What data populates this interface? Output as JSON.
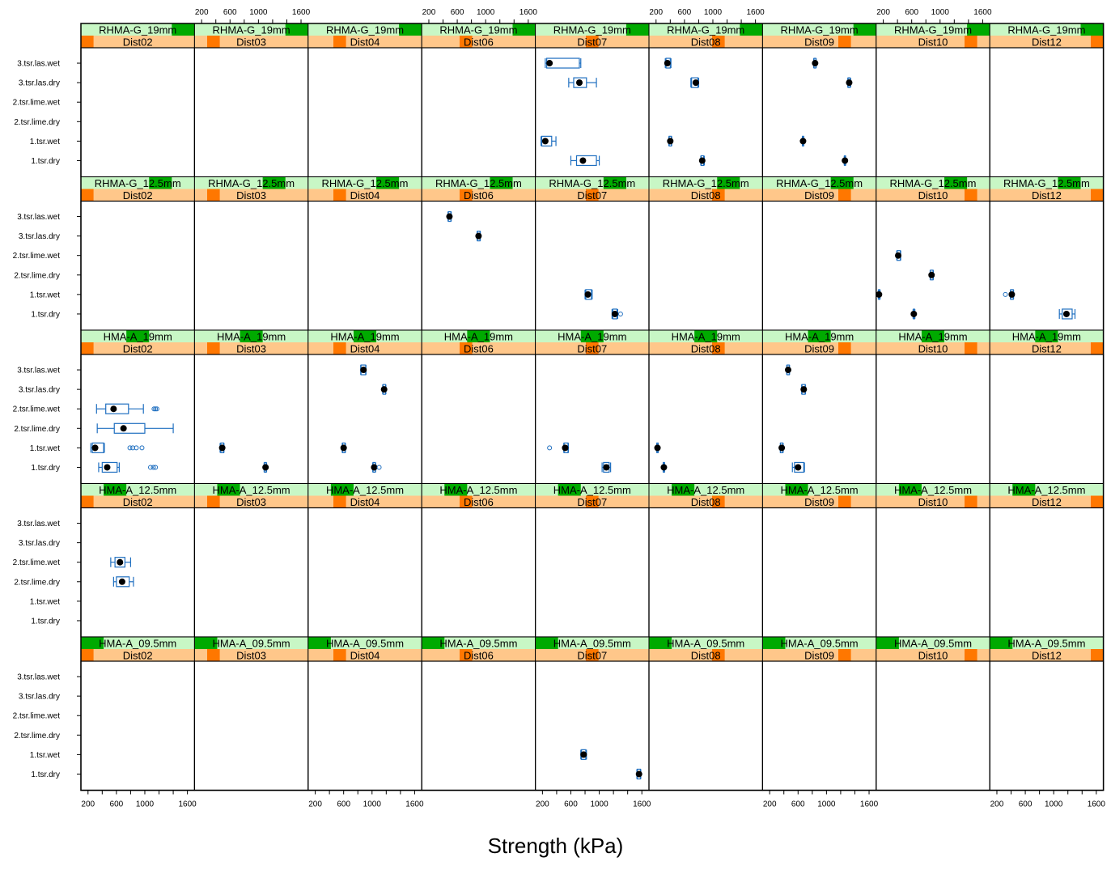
{
  "chart_data": {
    "type": "box",
    "xlabel": "Strength (kPa)",
    "x_ticks": [
      200,
      600,
      1000,
      1600
    ],
    "x_minor_ticks": [
      200,
      400,
      600,
      800,
      1000,
      1200,
      1400,
      1600
    ],
    "xlim": [
      100,
      1700
    ],
    "districts": [
      "Dist02",
      "Dist03",
      "Dist04",
      "Dist06",
      "Dist07",
      "Dist08",
      "Dist09",
      "Dist10",
      "Dist12"
    ],
    "mixes": [
      "RHMA-G_19mm",
      "RHMA-G_12.5mm",
      "HMA-A_19mm",
      "HMA-A_12.5mm",
      "HMA-A_09.5mm"
    ],
    "categories": [
      "3.tsr.las.wet",
      "3.tsr.las.dry",
      "2.tsr.lime.wet",
      "2.tsr.lime.dry",
      "1.tsr.wet",
      "1.tsr.dry"
    ],
    "colors": {
      "box": "#1f6fc0",
      "median": "#000000",
      "strip_mix_bg": "#c8f7c5",
      "strip_mix_mark": "#00aa00",
      "strip_dist_bg": "#ffc78a",
      "strip_dist_mark": "#ff7700"
    },
    "boxes": [
      {
        "mix": "RHMA-G_19mm",
        "district": "Dist07",
        "category": "3.tsr.las.wet",
        "whisker_low": 240,
        "q1": 260,
        "median": 300,
        "q3": 720,
        "whisker_high": 740,
        "outliers": []
      },
      {
        "mix": "RHMA-G_19mm",
        "district": "Dist07",
        "category": "3.tsr.las.dry",
        "whisker_low": 570,
        "q1": 640,
        "median": 720,
        "q3": 820,
        "whisker_high": 960,
        "outliers": []
      },
      {
        "mix": "RHMA-G_19mm",
        "district": "Dist07",
        "category": "1.tsr.wet",
        "whisker_low": 180,
        "q1": 190,
        "median": 240,
        "q3": 330,
        "whisker_high": 390,
        "outliers": []
      },
      {
        "mix": "RHMA-G_19mm",
        "district": "Dist07",
        "category": "1.tsr.dry",
        "whisker_low": 600,
        "q1": 680,
        "median": 770,
        "q3": 960,
        "whisker_high": 1000,
        "outliers": []
      },
      {
        "mix": "RHMA-G_19mm",
        "district": "Dist08",
        "category": "3.tsr.las.wet",
        "whisker_low": 330,
        "q1": 340,
        "median": 360,
        "q3": 400,
        "whisker_high": 410,
        "outliers": []
      },
      {
        "mix": "RHMA-G_19mm",
        "district": "Dist08",
        "category": "3.tsr.las.dry",
        "whisker_low": 690,
        "q1": 700,
        "median": 760,
        "q3": 790,
        "whisker_high": 800,
        "outliers": []
      },
      {
        "mix": "RHMA-G_19mm",
        "district": "Dist08",
        "category": "1.tsr.wet",
        "whisker_low": 380,
        "q1": 385,
        "median": 400,
        "q3": 415,
        "whisker_high": 420,
        "outliers": []
      },
      {
        "mix": "RHMA-G_19mm",
        "district": "Dist08",
        "category": "1.tsr.dry",
        "whisker_low": 830,
        "q1": 835,
        "median": 850,
        "q3": 870,
        "whisker_high": 880,
        "outliers": []
      },
      {
        "mix": "RHMA-G_19mm",
        "district": "Dist09",
        "category": "3.tsr.las.wet",
        "whisker_low": 820,
        "q1": 825,
        "median": 840,
        "q3": 850,
        "whisker_high": 855,
        "outliers": []
      },
      {
        "mix": "RHMA-G_19mm",
        "district": "Dist09",
        "category": "3.tsr.las.dry",
        "whisker_low": 1300,
        "q1": 1305,
        "median": 1320,
        "q3": 1330,
        "whisker_high": 1340,
        "outliers": []
      },
      {
        "mix": "RHMA-G_19mm",
        "district": "Dist09",
        "category": "1.tsr.wet",
        "whisker_low": 660,
        "q1": 662,
        "median": 670,
        "q3": 678,
        "whisker_high": 680,
        "outliers": []
      },
      {
        "mix": "RHMA-G_19mm",
        "district": "Dist09",
        "category": "1.tsr.dry",
        "whisker_low": 1250,
        "q1": 1255,
        "median": 1260,
        "q3": 1265,
        "whisker_high": 1270,
        "outliers": []
      },
      {
        "mix": "RHMA-G_12.5mm",
        "district": "Dist06",
        "category": "3.tsr.las.wet",
        "whisker_low": 470,
        "q1": 475,
        "median": 490,
        "q3": 510,
        "whisker_high": 515,
        "outliers": []
      },
      {
        "mix": "RHMA-G_12.5mm",
        "district": "Dist06",
        "category": "3.tsr.las.dry",
        "whisker_low": 880,
        "q1": 885,
        "median": 900,
        "q3": 920,
        "whisker_high": 925,
        "outliers": []
      },
      {
        "mix": "RHMA-G_12.5mm",
        "district": "Dist07",
        "category": "1.tsr.wet",
        "whisker_low": 800,
        "q1": 810,
        "median": 840,
        "q3": 890,
        "whisker_high": 900,
        "outliers": []
      },
      {
        "mix": "RHMA-G_12.5mm",
        "district": "Dist07",
        "category": "1.tsr.dry",
        "whisker_low": 1180,
        "q1": 1190,
        "median": 1220,
        "q3": 1250,
        "whisker_high": 1260,
        "outliers": [
          1300
        ]
      },
      {
        "mix": "RHMA-G_12.5mm",
        "district": "Dist10",
        "category": "2.tsr.lime.wet",
        "whisker_low": 390,
        "q1": 395,
        "median": 410,
        "q3": 440,
        "whisker_high": 445,
        "outliers": []
      },
      {
        "mix": "RHMA-G_12.5mm",
        "district": "Dist10",
        "category": "2.tsr.lime.dry",
        "whisker_low": 860,
        "q1": 865,
        "median": 880,
        "q3": 900,
        "whisker_high": 905,
        "outliers": []
      },
      {
        "mix": "RHMA-G_12.5mm",
        "district": "Dist10",
        "category": "1.tsr.wet",
        "whisker_low": 130,
        "q1": 135,
        "median": 140,
        "q3": 150,
        "whisker_high": 155,
        "outliers": []
      },
      {
        "mix": "RHMA-G_12.5mm",
        "district": "Dist10",
        "category": "1.tsr.dry",
        "whisker_low": 620,
        "q1": 625,
        "median": 630,
        "q3": 640,
        "whisker_high": 645,
        "outliers": []
      },
      {
        "mix": "RHMA-G_12.5mm",
        "district": "Dist12",
        "category": "1.tsr.wet",
        "whisker_low": 390,
        "q1": 395,
        "median": 410,
        "q3": 430,
        "whisker_high": 435,
        "outliers": [
          320
        ]
      },
      {
        "mix": "RHMA-G_12.5mm",
        "district": "Dist12",
        "category": "1.tsr.dry",
        "whisker_low": 1080,
        "q1": 1120,
        "median": 1180,
        "q3": 1260,
        "whisker_high": 1300,
        "outliers": []
      },
      {
        "mix": "HMA-A_19mm",
        "district": "Dist02",
        "category": "2.tsr.lime.wet",
        "whisker_low": 320,
        "q1": 450,
        "median": 560,
        "q3": 770,
        "whisker_high": 980,
        "outliers": [
          1130,
          1150,
          1170
        ]
      },
      {
        "mix": "HMA-A_19mm",
        "district": "Dist02",
        "category": "2.tsr.lime.dry",
        "whisker_low": 330,
        "q1": 570,
        "median": 700,
        "q3": 1000,
        "whisker_high": 1400,
        "outliers": []
      },
      {
        "mix": "HMA-A_19mm",
        "district": "Dist02",
        "category": "1.tsr.wet",
        "whisker_low": 240,
        "q1": 260,
        "median": 300,
        "q3": 420,
        "whisker_high": 430,
        "outliers": [
          790,
          830,
          880,
          960
        ]
      },
      {
        "mix": "HMA-A_19mm",
        "district": "Dist02",
        "category": "1.tsr.dry",
        "whisker_low": 350,
        "q1": 400,
        "median": 470,
        "q3": 610,
        "whisker_high": 640,
        "outliers": [
          1080,
          1120,
          1150
        ]
      },
      {
        "mix": "HMA-A_19mm",
        "district": "Dist03",
        "category": "1.tsr.wet",
        "whisker_low": 460,
        "q1": 470,
        "median": 490,
        "q3": 510,
        "whisker_high": 515,
        "outliers": []
      },
      {
        "mix": "HMA-A_19mm",
        "district": "Dist03",
        "category": "1.tsr.dry",
        "whisker_low": 1080,
        "q1": 1085,
        "median": 1100,
        "q3": 1110,
        "whisker_high": 1115,
        "outliers": []
      },
      {
        "mix": "HMA-A_19mm",
        "district": "Dist04",
        "category": "3.tsr.las.wet",
        "whisker_low": 840,
        "q1": 845,
        "median": 880,
        "q3": 910,
        "whisker_high": 915,
        "outliers": []
      },
      {
        "mix": "HMA-A_19mm",
        "district": "Dist04",
        "category": "3.tsr.las.dry",
        "whisker_low": 1150,
        "q1": 1155,
        "median": 1170,
        "q3": 1190,
        "whisker_high": 1195,
        "outliers": []
      },
      {
        "mix": "HMA-A_19mm",
        "district": "Dist04",
        "category": "1.tsr.wet",
        "whisker_low": 580,
        "q1": 585,
        "median": 600,
        "q3": 620,
        "whisker_high": 625,
        "outliers": []
      },
      {
        "mix": "HMA-A_19mm",
        "district": "Dist04",
        "category": "1.tsr.dry",
        "whisker_low": 1010,
        "q1": 1015,
        "median": 1030,
        "q3": 1045,
        "whisker_high": 1050,
        "outliers": [
          1100
        ]
      },
      {
        "mix": "HMA-A_19mm",
        "district": "Dist07",
        "category": "1.tsr.wet",
        "whisker_low": 500,
        "q1": 505,
        "median": 520,
        "q3": 560,
        "whisker_high": 565,
        "outliers": [
          300
        ]
      },
      {
        "mix": "HMA-A_19mm",
        "district": "Dist07",
        "category": "1.tsr.dry",
        "whisker_low": 1040,
        "q1": 1060,
        "median": 1100,
        "q3": 1140,
        "whisker_high": 1160,
        "outliers": []
      },
      {
        "mix": "HMA-A_19mm",
        "district": "Dist08",
        "category": "1.tsr.wet",
        "whisker_low": 210,
        "q1": 212,
        "median": 220,
        "q3": 228,
        "whisker_high": 230,
        "outliers": []
      },
      {
        "mix": "HMA-A_19mm",
        "district": "Dist08",
        "category": "1.tsr.dry",
        "whisker_low": 300,
        "q1": 302,
        "median": 310,
        "q3": 318,
        "whisker_high": 320,
        "outliers": []
      },
      {
        "mix": "HMA-A_19mm",
        "district": "Dist09",
        "category": "3.tsr.las.wet",
        "whisker_low": 440,
        "q1": 445,
        "median": 460,
        "q3": 475,
        "whisker_high": 480,
        "outliers": []
      },
      {
        "mix": "HMA-A_19mm",
        "district": "Dist09",
        "category": "3.tsr.las.dry",
        "whisker_low": 650,
        "q1": 655,
        "median": 680,
        "q3": 700,
        "whisker_high": 705,
        "outliers": []
      },
      {
        "mix": "HMA-A_19mm",
        "district": "Dist09",
        "category": "1.tsr.wet",
        "whisker_low": 350,
        "q1": 352,
        "median": 370,
        "q3": 385,
        "whisker_high": 390,
        "outliers": []
      },
      {
        "mix": "HMA-A_19mm",
        "district": "Dist09",
        "category": "1.tsr.dry",
        "whisker_low": 520,
        "q1": 550,
        "median": 600,
        "q3": 680,
        "whisker_high": 690,
        "outliers": []
      },
      {
        "mix": "HMA-A_12.5mm",
        "district": "Dist02",
        "category": "2.tsr.lime.wet",
        "whisker_low": 520,
        "q1": 580,
        "median": 650,
        "q3": 720,
        "whisker_high": 800,
        "outliers": []
      },
      {
        "mix": "HMA-A_12.5mm",
        "district": "Dist02",
        "category": "2.tsr.lime.dry",
        "whisker_low": 560,
        "q1": 600,
        "median": 680,
        "q3": 780,
        "whisker_high": 840,
        "outliers": []
      },
      {
        "mix": "HMA-A_09.5mm",
        "district": "Dist07",
        "category": "1.tsr.wet",
        "whisker_low": 740,
        "q1": 750,
        "median": 780,
        "q3": 810,
        "whisker_high": 820,
        "outliers": []
      },
      {
        "mix": "HMA-A_09.5mm",
        "district": "Dist07",
        "category": "1.tsr.dry",
        "whisker_low": 1530,
        "q1": 1535,
        "median": 1560,
        "q3": 1580,
        "whisker_high": 1585,
        "outliers": []
      }
    ]
  }
}
